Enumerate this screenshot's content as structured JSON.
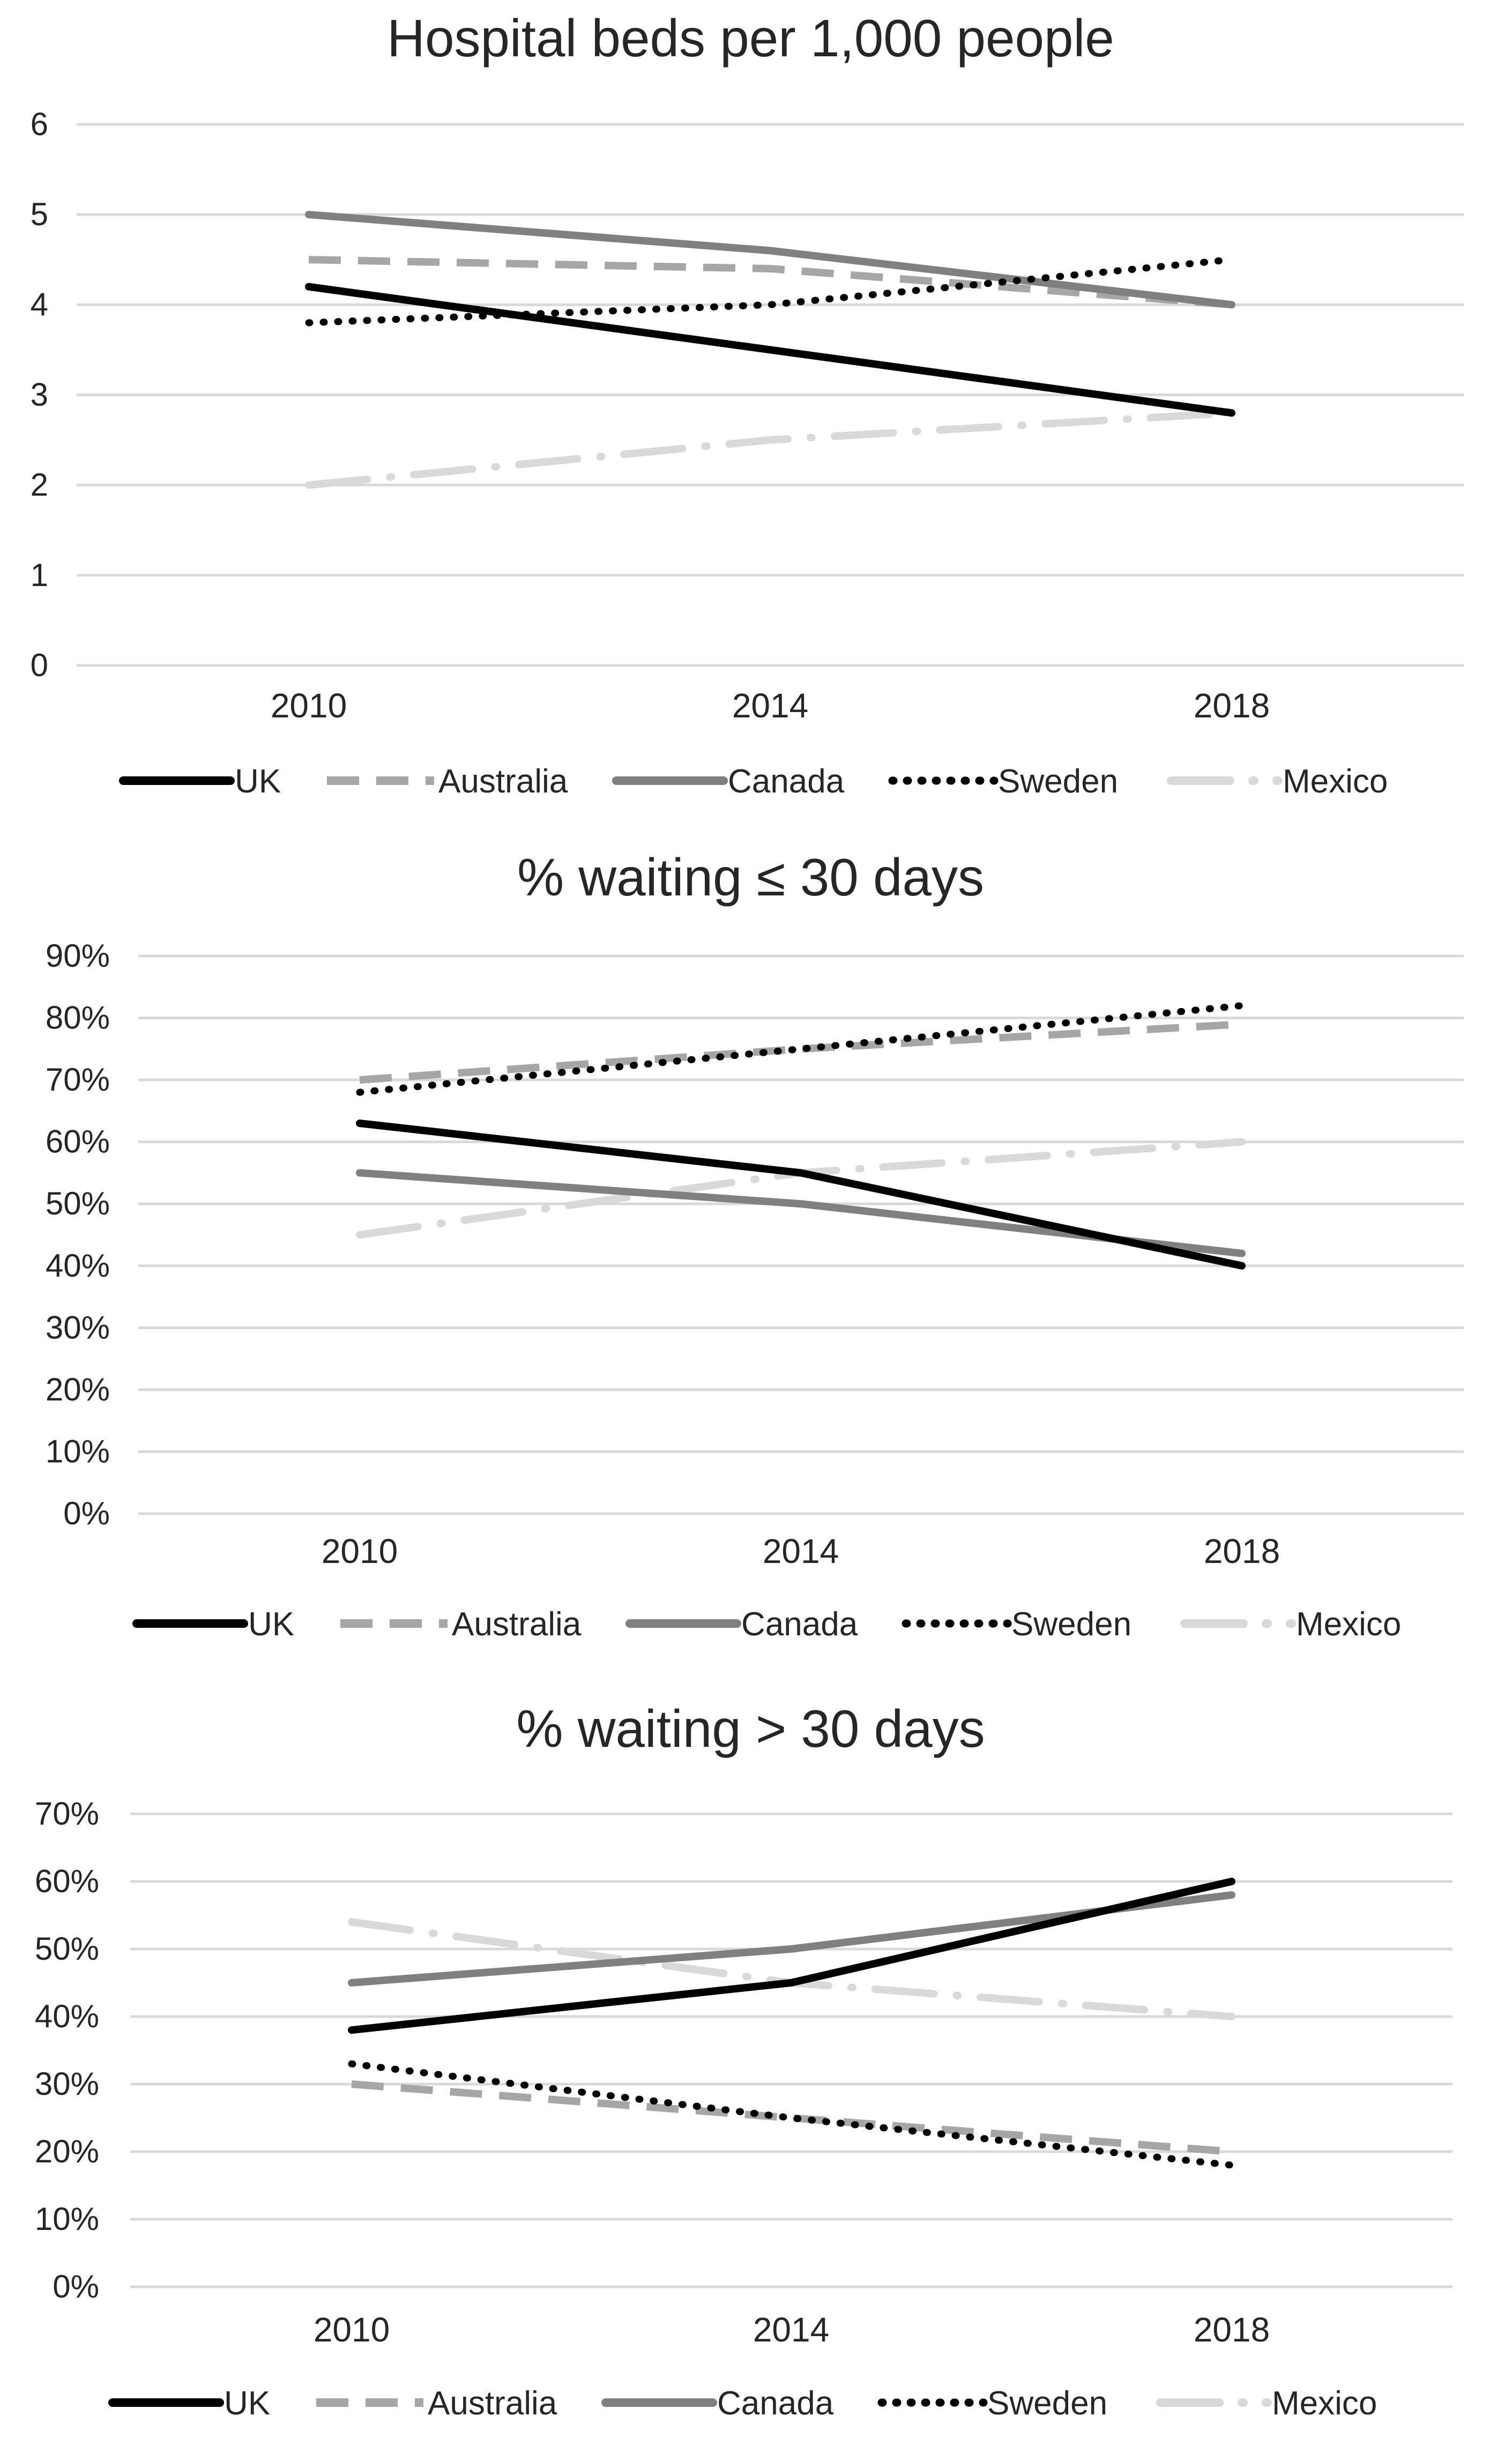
{
  "colors": {
    "background": "#ffffff",
    "grid": "#d9d9d9",
    "text": "#262626",
    "uk": "#000000",
    "australia": "#a6a6a6",
    "canada": "#808080",
    "sweden": "#000000",
    "mexico": "#d9d9d9"
  },
  "chart_data": [
    {
      "type": "line",
      "title": "Hospital beds per 1,000 people",
      "x": [
        "2010",
        "2014",
        "2018"
      ],
      "ylim": [
        0,
        6
      ],
      "yticks": [
        "0",
        "1",
        "2",
        "3",
        "4",
        "5",
        "6"
      ],
      "grid": true,
      "legend_position": "bottom",
      "series": [
        {
          "name": "UK",
          "values": [
            4.2,
            3.5,
            2.8
          ],
          "style": "solid",
          "color": "#000000"
        },
        {
          "name": "Australia",
          "values": [
            4.5,
            4.4,
            4.0
          ],
          "style": "dashed",
          "color": "#a6a6a6"
        },
        {
          "name": "Canada",
          "values": [
            5.0,
            4.6,
            4.0
          ],
          "style": "solid",
          "color": "#808080"
        },
        {
          "name": "Sweden",
          "values": [
            3.8,
            4.0,
            4.5
          ],
          "style": "dotted",
          "color": "#000000"
        },
        {
          "name": "Mexico",
          "values": [
            2.0,
            2.5,
            2.8
          ],
          "style": "dash-dot",
          "color": "#d9d9d9"
        }
      ]
    },
    {
      "type": "line",
      "title": "% waiting ≤ 30 days",
      "x": [
        "2010",
        "2014",
        "2018"
      ],
      "ylim": [
        0,
        90
      ],
      "yticks": [
        "0%",
        "10%",
        "20%",
        "30%",
        "40%",
        "50%",
        "60%",
        "70%",
        "80%",
        "90%"
      ],
      "grid": true,
      "legend_position": "bottom",
      "series": [
        {
          "name": "UK",
          "values": [
            63,
            55,
            40
          ],
          "style": "solid",
          "color": "#000000"
        },
        {
          "name": "Australia",
          "values": [
            70,
            75,
            79
          ],
          "style": "dashed",
          "color": "#a6a6a6"
        },
        {
          "name": "Canada",
          "values": [
            55,
            50,
            42
          ],
          "style": "solid",
          "color": "#808080"
        },
        {
          "name": "Sweden",
          "values": [
            68,
            75,
            82
          ],
          "style": "dotted",
          "color": "#000000"
        },
        {
          "name": "Mexico",
          "values": [
            45,
            55,
            60
          ],
          "style": "dash-dot",
          "color": "#d9d9d9"
        }
      ]
    },
    {
      "type": "line",
      "title": "% waiting > 30 days",
      "x": [
        "2010",
        "2014",
        "2018"
      ],
      "ylim": [
        0,
        70
      ],
      "yticks": [
        "0%",
        "10%",
        "20%",
        "30%",
        "40%",
        "50%",
        "60%",
        "70%"
      ],
      "grid": true,
      "legend_position": "bottom",
      "series": [
        {
          "name": "UK",
          "values": [
            38,
            45,
            60
          ],
          "style": "solid",
          "color": "#000000"
        },
        {
          "name": "Australia",
          "values": [
            30,
            25,
            20
          ],
          "style": "dashed",
          "color": "#a6a6a6"
        },
        {
          "name": "Canada",
          "values": [
            45,
            50,
            58
          ],
          "style": "solid",
          "color": "#808080"
        },
        {
          "name": "Sweden",
          "values": [
            33,
            25,
            18
          ],
          "style": "dotted",
          "color": "#000000"
        },
        {
          "name": "Mexico",
          "values": [
            54,
            45,
            40
          ],
          "style": "dash-dot",
          "color": "#d9d9d9"
        }
      ]
    }
  ]
}
